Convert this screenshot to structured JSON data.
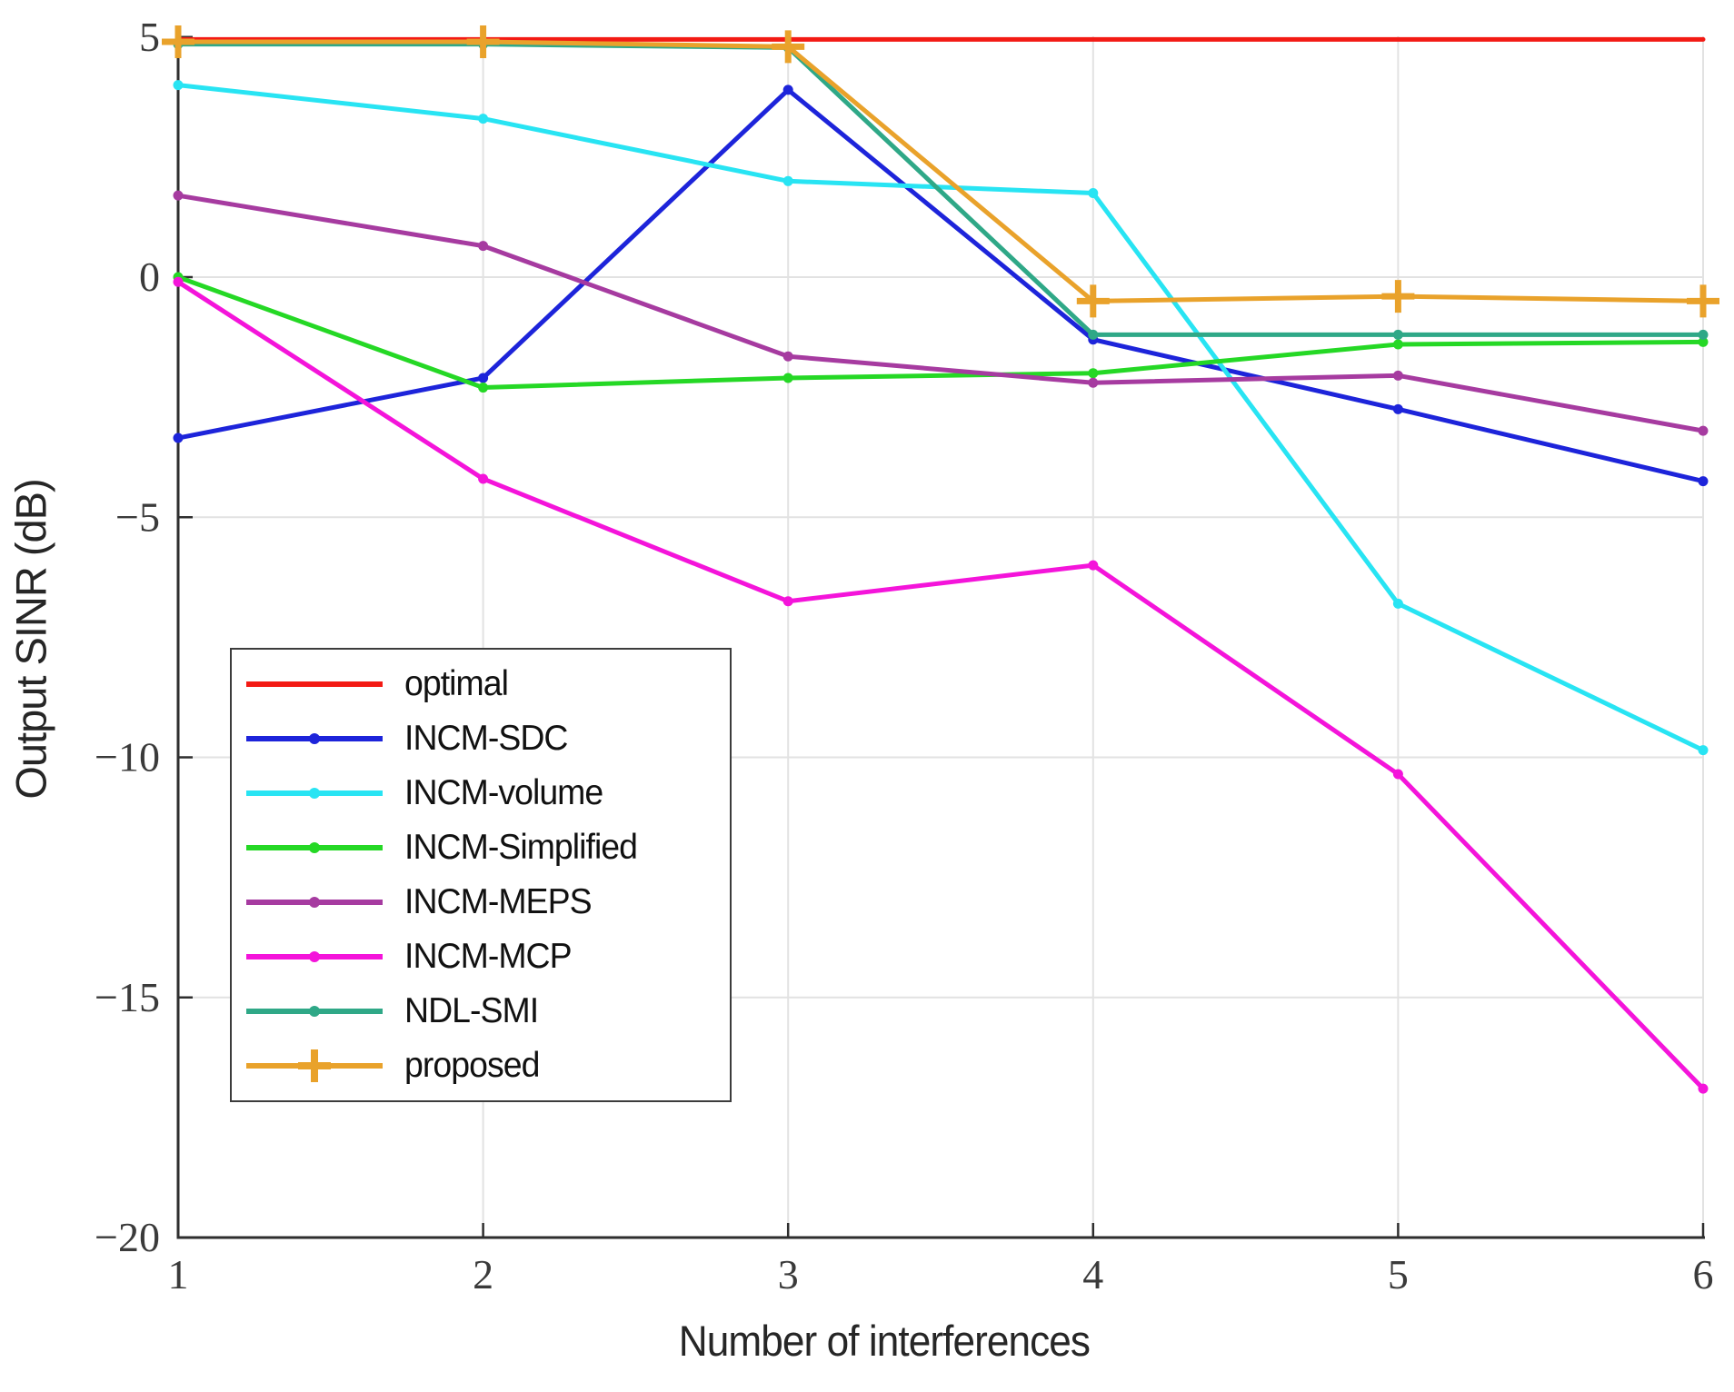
{
  "figure": {
    "y_axis": {
      "label": "Output SINR (dB)",
      "ticks": [
        5,
        0,
        -5,
        -10,
        -15,
        -20
      ],
      "tick_labels": [
        "5",
        "0",
        "−5",
        "−10",
        "−15",
        "−20"
      ],
      "range": [
        -20,
        5
      ]
    },
    "x_axis": {
      "label": "Number of interferences",
      "ticks": [
        1,
        2,
        3,
        4,
        5,
        6
      ],
      "tick_labels": [
        "1",
        "2",
        "3",
        "4",
        "5",
        "6"
      ],
      "range": [
        1,
        6
      ]
    },
    "grid_color": "#e2e2e2",
    "axis_color": "#2e2e2e",
    "tick_label_color": "#3a3a3a"
  },
  "chart_data": {
    "type": "line",
    "x": [
      1,
      2,
      3,
      4,
      5,
      6
    ],
    "xlabel": "Number of interferences",
    "ylabel": "Output SINR (dB)",
    "xlim": [
      1,
      6
    ],
    "ylim": [
      -20,
      5
    ],
    "grid": "on",
    "legend_position": "lower-left",
    "series": [
      {
        "name": "optimal",
        "color": "#f31a14",
        "marker": "none",
        "values": [
          4.95,
          4.95,
          4.95,
          4.95,
          4.95,
          4.95
        ]
      },
      {
        "name": "INCM-SDC",
        "color": "#1d24da",
        "marker": "dot",
        "values": [
          -3.35,
          -2.1,
          3.9,
          -1.3,
          -2.75,
          -4.25
        ]
      },
      {
        "name": "INCM-volume",
        "color": "#28e4f3",
        "marker": "dot",
        "values": [
          4.0,
          3.3,
          2.0,
          1.75,
          -6.8,
          -9.85
        ]
      },
      {
        "name": "INCM-Simplified",
        "color": "#25d825",
        "marker": "dot",
        "values": [
          0.0,
          -2.3,
          -2.1,
          -2.0,
          -1.4,
          -1.35
        ]
      },
      {
        "name": "INCM-MEPS",
        "color": "#a63ba0",
        "marker": "dot",
        "values": [
          1.7,
          0.65,
          -1.65,
          -2.2,
          -2.05,
          -3.2
        ]
      },
      {
        "name": "INCM-MCP",
        "color": "#f414da",
        "marker": "dot",
        "values": [
          -0.1,
          -4.2,
          -6.75,
          -6.0,
          -10.35,
          -16.9
        ]
      },
      {
        "name": "NDL-SMI",
        "color": "#2fa887",
        "marker": "dot",
        "values": [
          4.85,
          4.85,
          4.78,
          -1.2,
          -1.2,
          -1.2
        ]
      },
      {
        "name": "proposed",
        "color": "#e9a22b",
        "marker": "plus",
        "values": [
          4.9,
          4.9,
          4.8,
          -0.5,
          -0.4,
          -0.5
        ]
      }
    ]
  },
  "legend": {
    "entries": [
      "optimal",
      "INCM-SDC",
      "INCM-volume",
      "INCM-Simplified",
      "INCM-MEPS",
      "INCM-MCP",
      "NDL-SMI",
      "proposed"
    ]
  }
}
